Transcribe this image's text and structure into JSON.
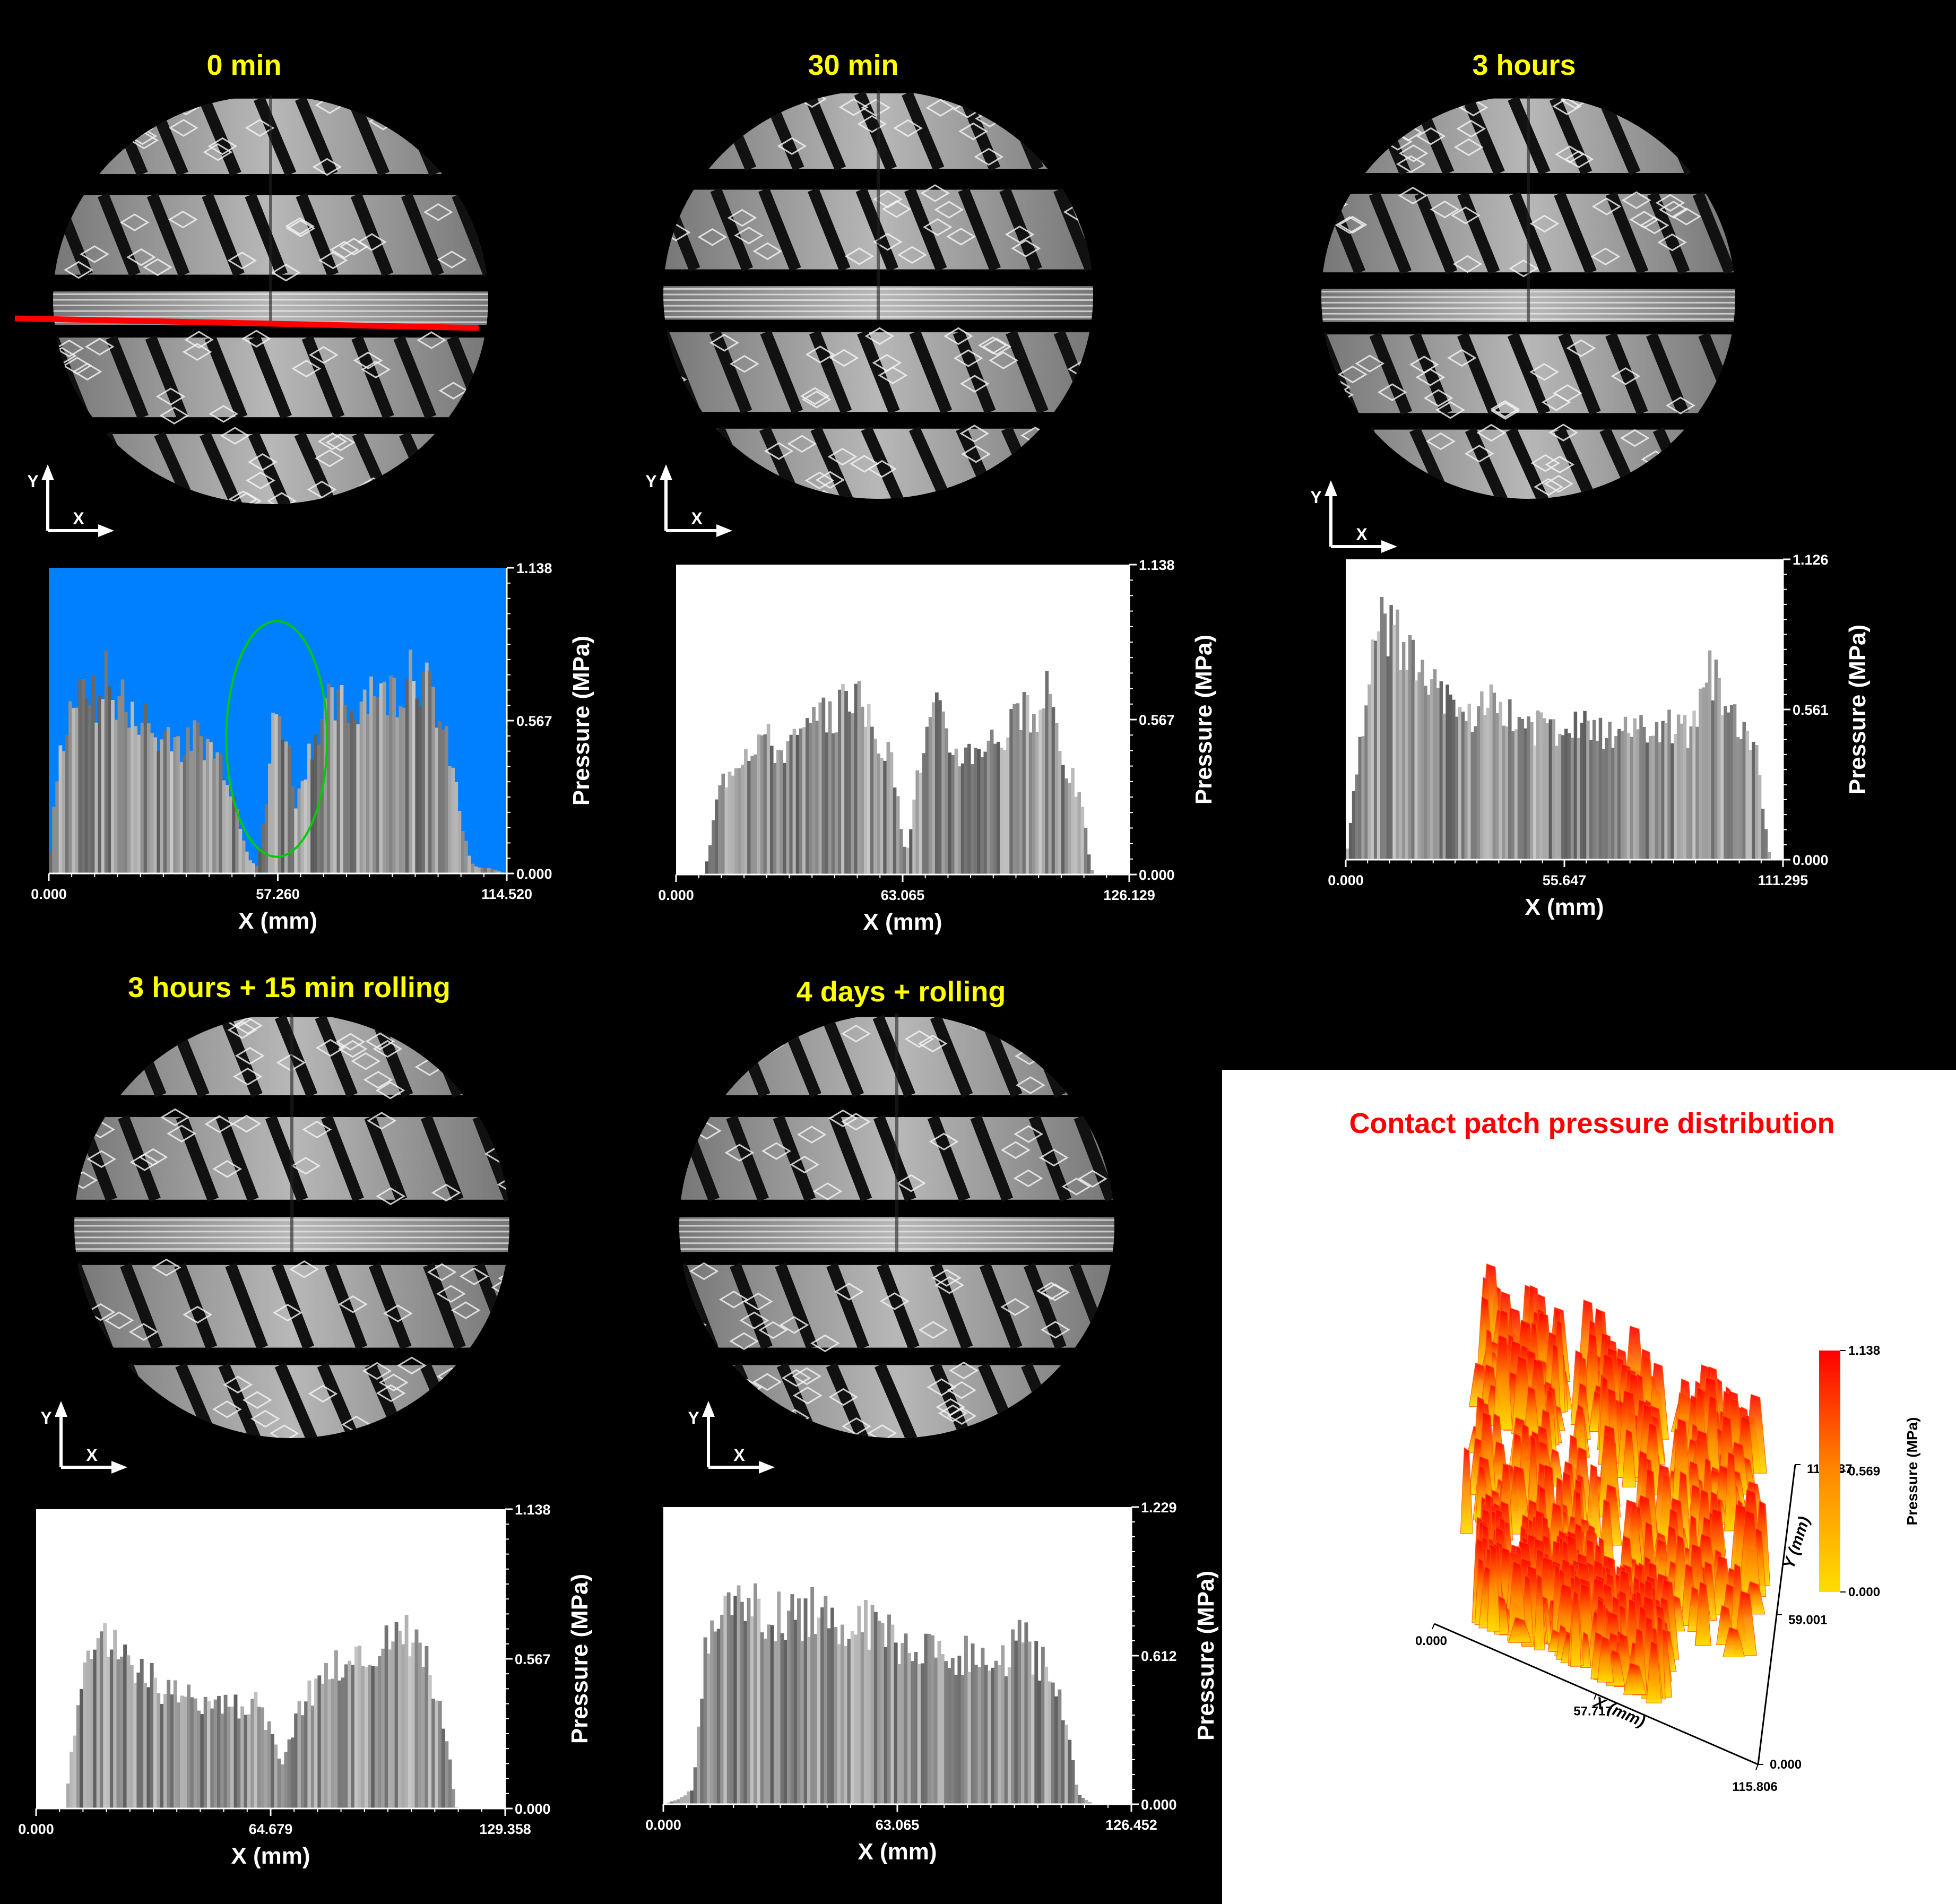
{
  "colors": {
    "background": "#000000",
    "title": "#ffff00",
    "profile_first_bg": "#0080ff",
    "profile_bg": "#ffffff",
    "highlight_line": "#ff0000",
    "highlight_ellipse": "#00cc00",
    "map_low": "#ffdd00",
    "map_high": "#ff0000",
    "p3d_title": "#ff0000"
  },
  "panels": [
    {
      "title": "0 min",
      "axis_x": "X",
      "axis_y": "Y"
    },
    {
      "title": "30 min",
      "axis_x": "X",
      "axis_y": "Y"
    },
    {
      "title": "3 hours",
      "axis_x": "X",
      "axis_y": "Y"
    },
    {
      "title": "3 hours + 15 min rolling",
      "axis_x": "X",
      "axis_y": "Y"
    },
    {
      "title": "4 days + rolling",
      "axis_x": "X",
      "axis_y": "Y"
    }
  ],
  "chart_data": [
    {
      "type": "bar",
      "title": "0 min",
      "xlabel": "X (mm)",
      "ylabel": "Pressure (MPa)",
      "xlim": [
        0,
        114.52
      ],
      "ylim": [
        0,
        1.138
      ],
      "xticks": [
        "0.000",
        "57.260",
        "114.520"
      ],
      "yticks": [
        "0.000",
        "0.567",
        "1.138"
      ],
      "x": [
        0,
        2,
        4,
        6,
        8,
        10,
        12,
        14,
        16,
        18,
        20,
        22,
        24,
        26,
        28,
        30,
        32,
        34,
        36,
        38,
        40,
        42,
        44,
        46,
        48,
        50,
        52,
        54,
        56,
        58,
        60,
        62,
        64,
        66,
        68,
        70,
        72,
        74,
        76,
        78,
        80,
        82,
        84,
        86,
        88,
        90,
        92,
        94,
        96,
        98,
        100,
        102,
        104,
        106,
        108,
        110,
        112,
        114
      ],
      "values": [
        0.02,
        0.35,
        0.55,
        0.66,
        0.64,
        0.72,
        0.58,
        0.78,
        0.62,
        0.7,
        0.55,
        0.6,
        0.58,
        0.52,
        0.48,
        0.55,
        0.5,
        0.45,
        0.52,
        0.5,
        0.48,
        0.44,
        0.4,
        0.3,
        0.18,
        0.06,
        0.03,
        0.2,
        0.55,
        0.6,
        0.45,
        0.25,
        0.4,
        0.5,
        0.58,
        0.62,
        0.6,
        0.65,
        0.58,
        0.66,
        0.7,
        0.72,
        0.64,
        0.7,
        0.66,
        0.82,
        0.74,
        0.7,
        0.66,
        0.55,
        0.45,
        0.3,
        0.12,
        0.03,
        0.02,
        0.02,
        0.01,
        0.0
      ]
    },
    {
      "type": "bar",
      "title": "30 min",
      "xlabel": "X (mm)",
      "ylabel": "Pressure (MPa)",
      "xlim": [
        0,
        126.129
      ],
      "ylim": [
        0,
        1.138
      ],
      "xticks": [
        "0.000",
        "63.065",
        "126.129"
      ],
      "yticks": [
        "0.000",
        "0.567",
        "1.138"
      ],
      "x": [
        0,
        4,
        8,
        12,
        16,
        20,
        24,
        28,
        32,
        36,
        40,
        44,
        48,
        52,
        56,
        60,
        64,
        68,
        72,
        76,
        80,
        84,
        88,
        92,
        96,
        100,
        104,
        108,
        112,
        116,
        120,
        124
      ],
      "values": [
        0.0,
        0.0,
        0.0,
        0.32,
        0.42,
        0.48,
        0.52,
        0.46,
        0.48,
        0.52,
        0.56,
        0.58,
        0.7,
        0.6,
        0.52,
        0.4,
        0.08,
        0.42,
        0.62,
        0.48,
        0.44,
        0.48,
        0.5,
        0.52,
        0.6,
        0.55,
        0.68,
        0.42,
        0.3,
        0.0,
        0.0,
        0.0
      ]
    },
    {
      "type": "bar",
      "title": "3 hours",
      "xlabel": "X (mm)",
      "ylabel": "Pressure (MPa)",
      "xlim": [
        0,
        111.295
      ],
      "ylim": [
        0,
        1.126
      ],
      "xticks": [
        "0.000",
        "55.647",
        "111.295"
      ],
      "yticks": [
        "0.000",
        "0.561",
        "1.126"
      ],
      "x": [
        0,
        4,
        8,
        12,
        16,
        20,
        24,
        28,
        32,
        36,
        40,
        44,
        48,
        52,
        56,
        60,
        64,
        68,
        72,
        76,
        80,
        84,
        88,
        92,
        96,
        100,
        104,
        108
      ],
      "values": [
        0.0,
        0.45,
        0.88,
        0.85,
        0.78,
        0.7,
        0.62,
        0.58,
        0.55,
        0.6,
        0.52,
        0.56,
        0.5,
        0.48,
        0.44,
        0.52,
        0.48,
        0.45,
        0.5,
        0.52,
        0.48,
        0.5,
        0.46,
        0.7,
        0.62,
        0.5,
        0.45,
        0.0
      ]
    },
    {
      "type": "bar",
      "title": "3 hours + 15 min rolling",
      "xlabel": "X (mm)",
      "ylabel": "Pressure (MPa)",
      "xlim": [
        0,
        129.358
      ],
      "ylim": [
        0,
        1.138
      ],
      "xticks": [
        "0.000",
        "64.679",
        "129.358"
      ],
      "yticks": [
        "0.000",
        "0.567",
        "1.138"
      ],
      "x": [
        0,
        4,
        8,
        12,
        16,
        20,
        24,
        28,
        32,
        36,
        40,
        44,
        48,
        52,
        56,
        60,
        64,
        68,
        72,
        76,
        80,
        84,
        88,
        92,
        96,
        100,
        104,
        108,
        112,
        116,
        120,
        124,
        128
      ],
      "values": [
        0.0,
        0.0,
        0.0,
        0.45,
        0.58,
        0.68,
        0.6,
        0.52,
        0.48,
        0.44,
        0.42,
        0.4,
        0.44,
        0.4,
        0.38,
        0.42,
        0.3,
        0.15,
        0.38,
        0.45,
        0.52,
        0.55,
        0.56,
        0.58,
        0.62,
        0.7,
        0.65,
        0.55,
        0.35,
        0.0,
        0.0,
        0.0,
        0.0
      ]
    },
    {
      "type": "bar",
      "title": "4 days + rolling",
      "xlabel": "X (mm)",
      "ylabel": "Pressure (MPa)",
      "xlim": [
        0,
        126.452
      ],
      "ylim": [
        0,
        1.229
      ],
      "xticks": [
        "0.000",
        "63.065",
        "126.452"
      ],
      "yticks": [
        "0.000",
        "0.612",
        "1.229"
      ],
      "x": [
        0,
        4,
        8,
        12,
        16,
        20,
        24,
        28,
        32,
        36,
        40,
        44,
        48,
        52,
        56,
        60,
        64,
        68,
        72,
        76,
        80,
        84,
        88,
        92,
        96,
        100,
        104,
        108,
        112,
        116,
        120,
        124
      ],
      "values": [
        0.0,
        0.02,
        0.06,
        0.72,
        0.8,
        0.85,
        0.82,
        0.78,
        0.8,
        0.76,
        0.82,
        0.78,
        0.75,
        0.8,
        0.72,
        0.7,
        0.68,
        0.66,
        0.64,
        0.62,
        0.6,
        0.62,
        0.6,
        0.58,
        0.7,
        0.62,
        0.55,
        0.4,
        0.04,
        0.0,
        0.0,
        0.0
      ]
    },
    {
      "type": "heatmap",
      "title": "Contact patch pressure distribution",
      "xlabel": "X (mm)",
      "ylabel": "Y (mm)",
      "colorbar_label": "Pressure (MPa)",
      "xticks": [
        "0.000",
        "57.717",
        "115.806"
      ],
      "yticks": [
        "0.000",
        "59.001",
        "118.387"
      ],
      "cticks": [
        "0.000",
        "0.569",
        "1.138"
      ],
      "xlim": [
        0,
        115.806
      ],
      "ylim": [
        0,
        118.387
      ],
      "clim": [
        0,
        1.138
      ]
    }
  ]
}
